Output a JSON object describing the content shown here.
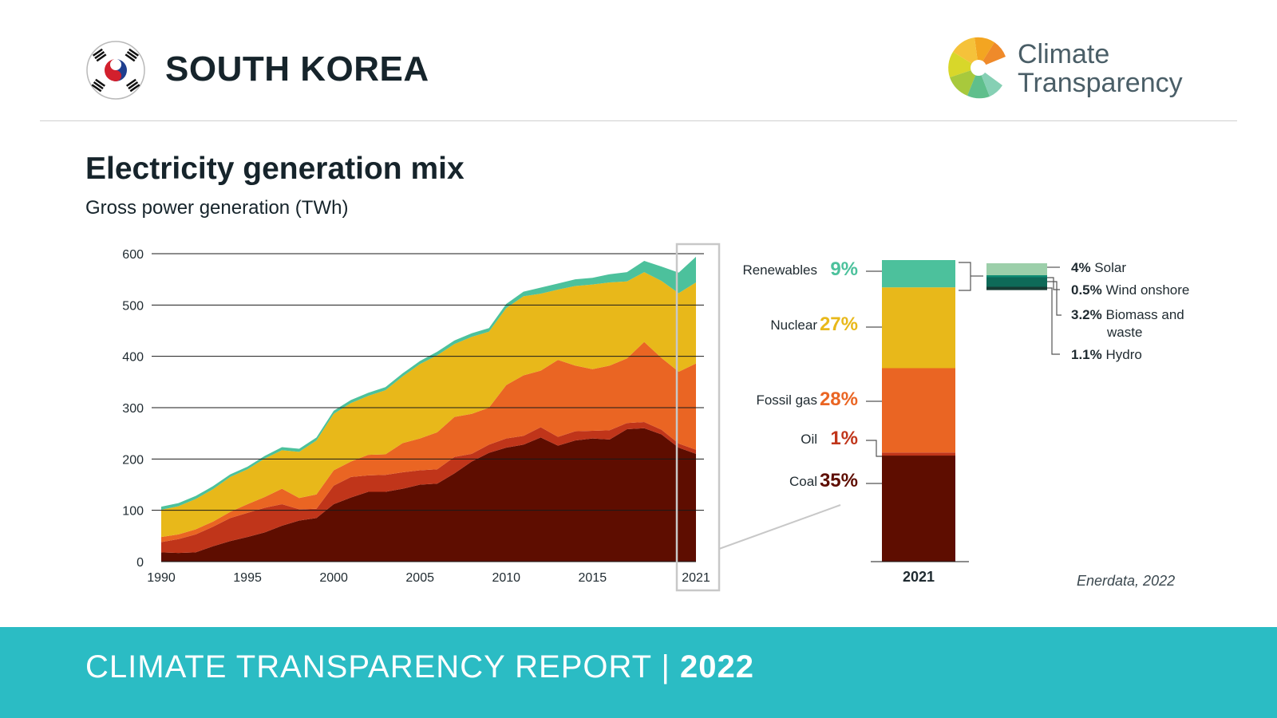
{
  "header": {
    "country": "SOUTH KOREA",
    "logo_line1": "Climate",
    "logo_line2": "Transparency",
    "flag_icon": "south-korea-flag-icon",
    "logo_icon": "climate-transparency-logo-icon"
  },
  "title": "Electricity generation mix",
  "subtitle": "Gross power generation (TWh)",
  "source": "Enerdata, 2022",
  "footer": {
    "text": "CLIMATE TRANSPARENCY REPORT",
    "separator": "|",
    "year": "2022"
  },
  "colors": {
    "coal": "#5e0d00",
    "oil": "#c0351a",
    "gas": "#ea6523",
    "nuclear": "#e8b81a",
    "renewables": "#4cc19c",
    "solar": "#9ccfaa",
    "wind": "#0f8c73",
    "biomass": "#0e6a58",
    "hydro": "#173b33",
    "footer": "#2bbcc4"
  },
  "chart_data": [
    {
      "type": "area",
      "stacked": true,
      "x_ticks": [
        1990,
        1995,
        2000,
        2005,
        2010,
        2015,
        2021
      ],
      "y_ticks": [
        0,
        100,
        200,
        300,
        400,
        500,
        600
      ],
      "ylim": [
        0,
        600
      ],
      "xlim": [
        1990,
        2021
      ],
      "grid": true,
      "highlight_label": "2021",
      "x": [
        1990,
        1991,
        1992,
        1993,
        1994,
        1995,
        1996,
        1997,
        1998,
        1999,
        2000,
        2001,
        2002,
        2003,
        2004,
        2005,
        2006,
        2007,
        2008,
        2009,
        2010,
        2011,
        2012,
        2013,
        2014,
        2015,
        2016,
        2017,
        2018,
        2019,
        2020,
        2021
      ],
      "series": [
        {
          "key": "coal",
          "values": [
            18,
            17,
            18,
            30,
            40,
            48,
            57,
            70,
            80,
            85,
            112,
            125,
            136,
            136,
            142,
            150,
            152,
            172,
            195,
            212,
            222,
            228,
            242,
            226,
            236,
            240,
            238,
            258,
            260,
            248,
            222,
            210
          ]
        },
        {
          "key": "oil",
          "values": [
            20,
            27,
            35,
            38,
            45,
            47,
            48,
            42,
            22,
            18,
            36,
            40,
            32,
            33,
            32,
            28,
            28,
            32,
            15,
            16,
            18,
            17,
            20,
            17,
            18,
            15,
            18,
            12,
            12,
            9,
            8,
            8
          ]
        },
        {
          "key": "gas",
          "values": [
            10,
            9,
            10,
            10,
            12,
            17,
            21,
            30,
            22,
            28,
            30,
            30,
            40,
            40,
            57,
            62,
            72,
            78,
            78,
            72,
            104,
            118,
            110,
            150,
            128,
            120,
            126,
            126,
            156,
            140,
            140,
            168
          ]
        },
        {
          "key": "nuclear",
          "values": [
            53,
            55,
            59,
            63,
            68,
            68,
            75,
            75,
            90,
            105,
            110,
            114,
            115,
            125,
            130,
            145,
            150,
            142,
            150,
            148,
            150,
            154,
            150,
            137,
            155,
            165,
            162,
            150,
            136,
            150,
            153,
            158
          ]
        },
        {
          "key": "renewables",
          "values": [
            6,
            6,
            6,
            6,
            5,
            5,
            5,
            6,
            6,
            6,
            6,
            6,
            6,
            6,
            6,
            6,
            7,
            7,
            7,
            7,
            8,
            9,
            12,
            12,
            13,
            13,
            16,
            18,
            22,
            28,
            40,
            50
          ]
        }
      ]
    },
    {
      "type": "bar",
      "stacked": true,
      "categories": [
        "2021"
      ],
      "series": [
        {
          "name": "Coal",
          "value_pct": 35,
          "label": "35%",
          "values": [
            210
          ]
        },
        {
          "name": "Oil",
          "value_pct": 1,
          "label": "1%",
          "values": [
            6
          ]
        },
        {
          "name": "Fossil gas",
          "value_pct": 28,
          "label": "28%",
          "values": [
            167
          ]
        },
        {
          "name": "Nuclear",
          "value_pct": 27,
          "label": "27%",
          "values": [
            160
          ]
        },
        {
          "name": "Renewables",
          "value_pct": 9,
          "label": "9%",
          "values": [
            54
          ]
        }
      ],
      "ylim": [
        0,
        600
      ]
    },
    {
      "type": "bar",
      "stacked": true,
      "categories": [
        "Renewables"
      ],
      "series": [
        {
          "key": "solar",
          "pct": "4%",
          "name": "Solar",
          "value": 4
        },
        {
          "key": "wind",
          "pct": "0.5%",
          "name": "Wind onshore",
          "value": 0.5
        },
        {
          "key": "biomass",
          "pct": "3.2%",
          "name": "Biomass and waste",
          "value": 3.2
        },
        {
          "key": "hydro",
          "pct": "1.1%",
          "name": "Hydro",
          "value": 1.1
        }
      ]
    }
  ]
}
